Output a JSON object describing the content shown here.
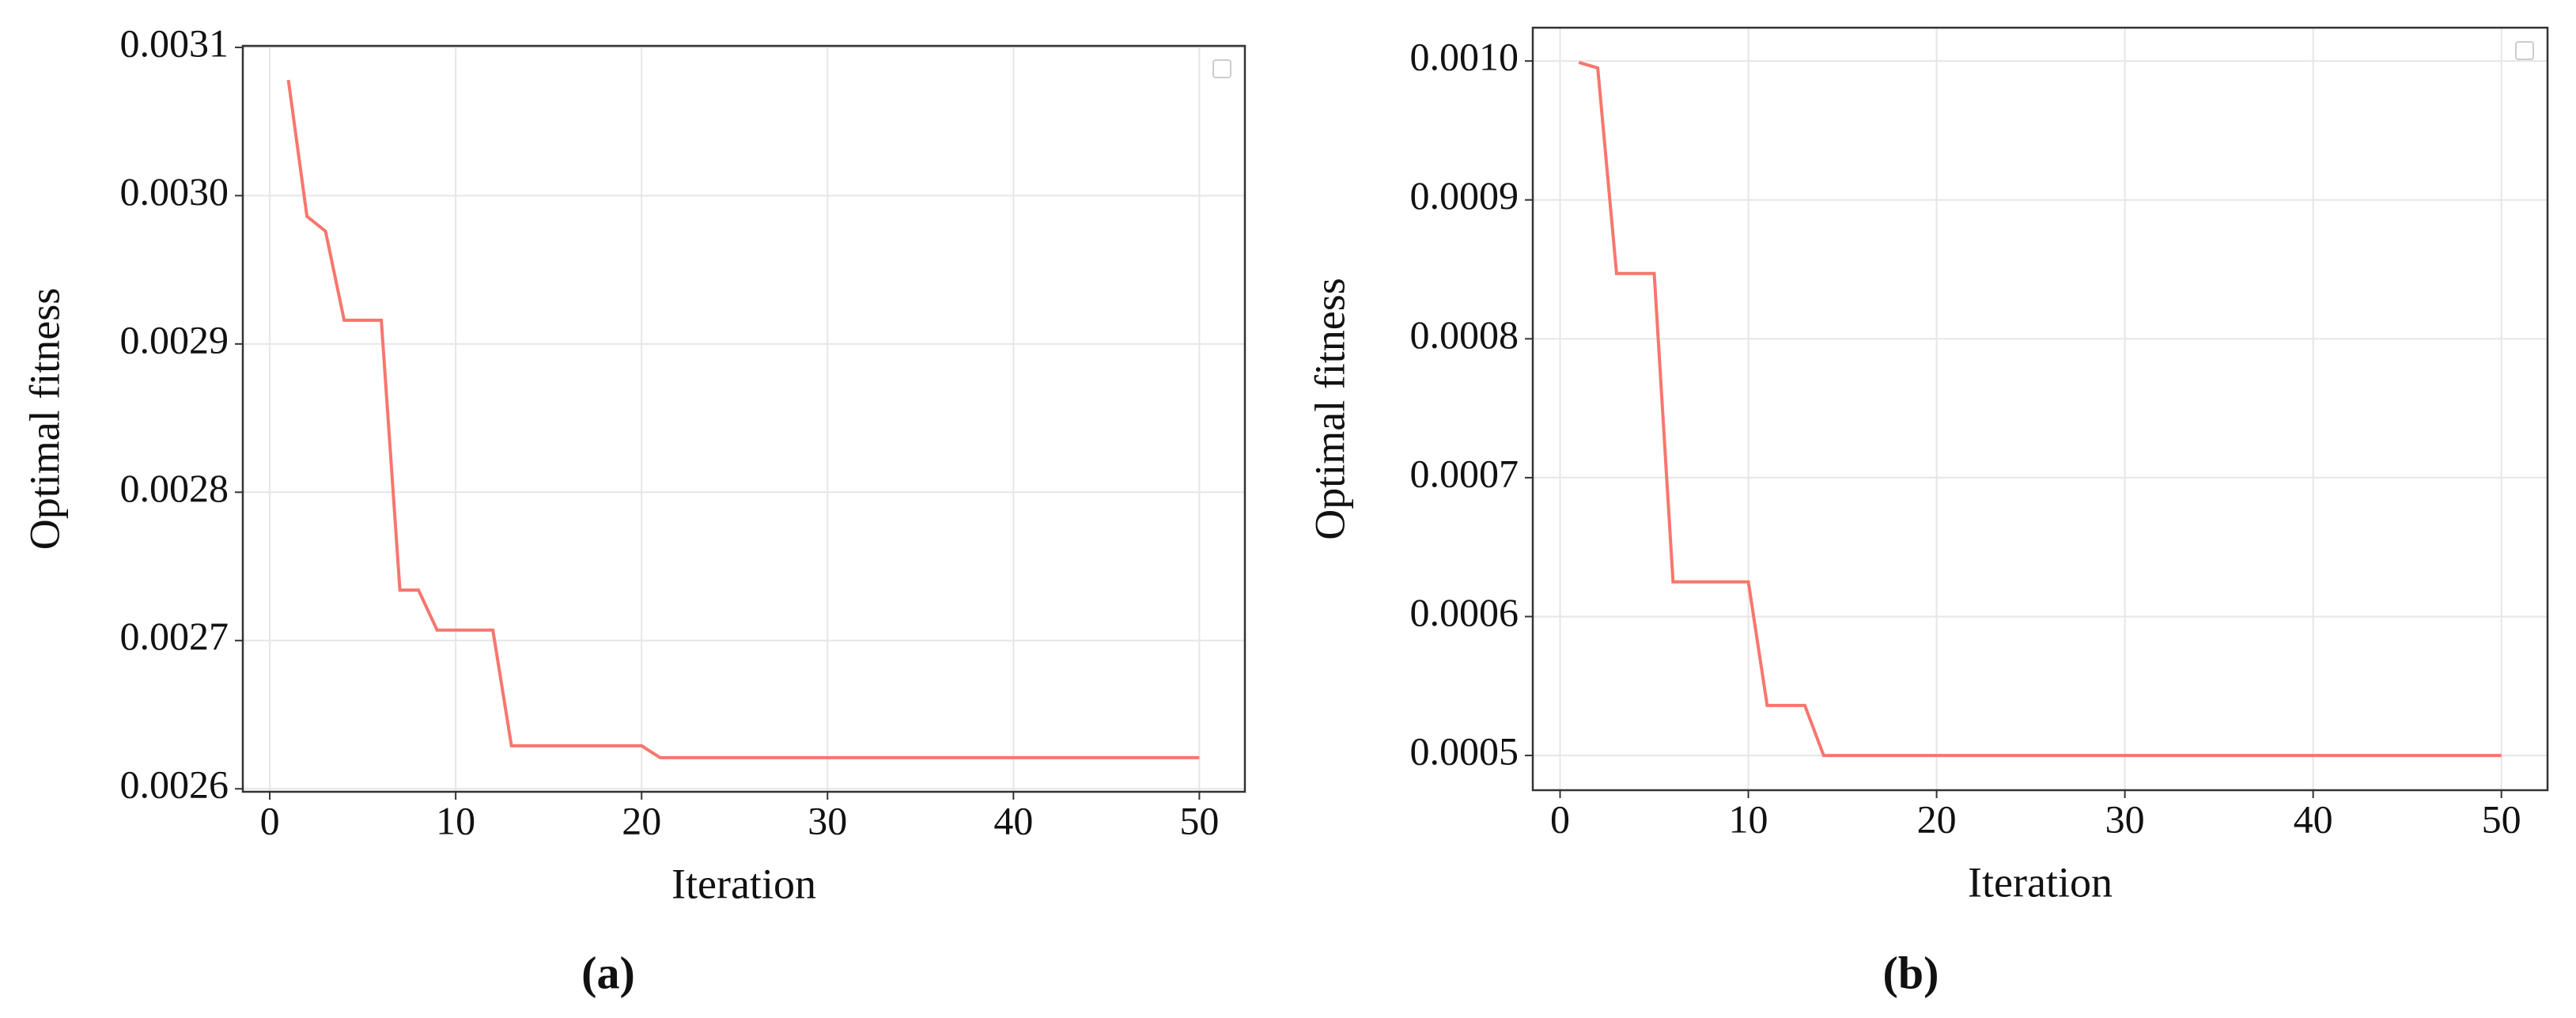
{
  "chart_data": [
    {
      "type": "line",
      "caption": "(a)",
      "xlabel": "Iteration",
      "ylabel": "Optimal fitness",
      "x": [
        1,
        2,
        3,
        4,
        5,
        6,
        7,
        8,
        9,
        10,
        11,
        12,
        13,
        14,
        15,
        16,
        17,
        18,
        19,
        20,
        21,
        22,
        23,
        24,
        25,
        26,
        27,
        28,
        29,
        30,
        31,
        32,
        33,
        34,
        35,
        36,
        37,
        38,
        39,
        40,
        41,
        42,
        43,
        44,
        45,
        46,
        47,
        48,
        49,
        50
      ],
      "series": [
        {
          "color": "#f8766d",
          "values": [
            0.003078,
            0.002986,
            0.002976,
            0.002916,
            0.002916,
            0.002916,
            0.002734,
            0.002734,
            0.002707,
            0.002707,
            0.002707,
            0.002707,
            0.002629,
            0.002629,
            0.002629,
            0.002629,
            0.002629,
            0.002629,
            0.002629,
            0.002629,
            0.002621,
            0.002621,
            0.002621,
            0.002621,
            0.002621,
            0.002621,
            0.002621,
            0.002621,
            0.002621,
            0.002621,
            0.002621,
            0.002621,
            0.002621,
            0.002621,
            0.002621,
            0.002621,
            0.002621,
            0.002621,
            0.002621,
            0.002621,
            0.002621,
            0.002621,
            0.002621,
            0.002621,
            0.002621,
            0.002621,
            0.002621,
            0.002621,
            0.002621,
            0.002621
          ]
        }
      ],
      "xlim": [
        -1.45,
        52.45
      ],
      "xticks": [
        0,
        10,
        20,
        30,
        40,
        50
      ],
      "ylim": [
        0.002598,
        0.003101
      ],
      "yticks": [
        0.0026,
        0.0027,
        0.0028,
        0.0029,
        {
          "value": 0.003,
          "label": "0.0030"
        },
        0.0031
      ],
      "grid": true
    },
    {
      "type": "line",
      "caption": "(b)",
      "xlabel": "Iteration",
      "ylabel": "Optimal fitness",
      "x": [
        1,
        2,
        3,
        4,
        5,
        6,
        7,
        8,
        9,
        10,
        11,
        12,
        13,
        14,
        15,
        16,
        17,
        18,
        19,
        20,
        21,
        22,
        23,
        24,
        25,
        26,
        27,
        28,
        29,
        30,
        31,
        32,
        33,
        34,
        35,
        36,
        37,
        38,
        39,
        40,
        41,
        42,
        43,
        44,
        45,
        46,
        47,
        48,
        49,
        50
      ],
      "series": [
        {
          "color": "#f8766d",
          "values": [
            0.000999,
            0.000995,
            0.000847,
            0.000847,
            0.000847,
            0.000625,
            0.000625,
            0.000625,
            0.000625,
            0.000625,
            0.000536,
            0.000536,
            0.000536,
            0.0005,
            0.0005,
            0.0005,
            0.0005,
            0.0005,
            0.0005,
            0.0005,
            0.0005,
            0.0005,
            0.0005,
            0.0005,
            0.0005,
            0.0005,
            0.0005,
            0.0005,
            0.0005,
            0.0005,
            0.0005,
            0.0005,
            0.0005,
            0.0005,
            0.0005,
            0.0005,
            0.0005,
            0.0005,
            0.0005,
            0.0005,
            0.0005,
            0.0005,
            0.0005,
            0.0005,
            0.0005,
            0.0005,
            0.0005,
            0.0005,
            0.0005,
            0.0005
          ]
        }
      ],
      "xlim": [
        -1.45,
        52.45
      ],
      "xticks": [
        0,
        10,
        20,
        30,
        40,
        50
      ],
      "ylim": [
        0.000475,
        0.001024
      ],
      "yticks": [
        0.0005,
        0.0006,
        0.0007,
        0.0008,
        0.0009,
        {
          "value": 0.001,
          "label": "0.0010"
        }
      ],
      "grid": true
    }
  ]
}
